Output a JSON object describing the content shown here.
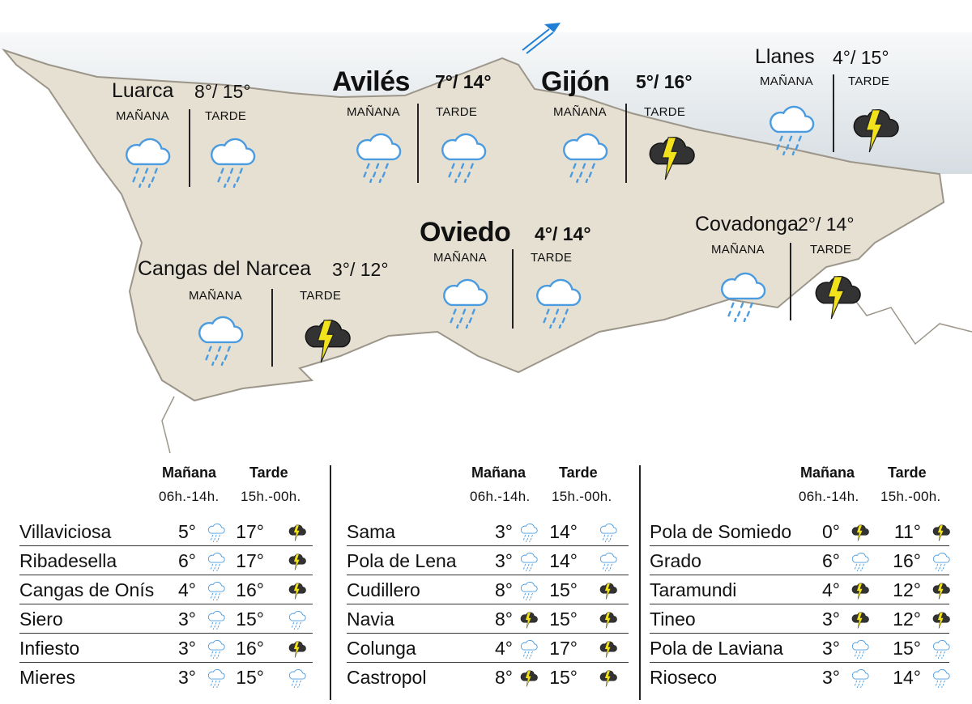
{
  "map": {
    "cities": [
      {
        "name": "Luarca",
        "temps": "8°/ 15°",
        "style": "normal",
        "morning_label": "MAÑANA",
        "afternoon_label": "TARDE",
        "morning_icon": "rain-cloud-icon",
        "afternoon_icon": "rain-cloud-icon"
      },
      {
        "name": "Avilés",
        "temps": "7°/ 14°",
        "style": "bold",
        "morning_label": "MAÑANA",
        "afternoon_label": "TARDE",
        "morning_icon": "rain-cloud-icon",
        "afternoon_icon": "rain-cloud-icon"
      },
      {
        "name": "Gijón",
        "temps": "5°/ 16°",
        "style": "bold",
        "morning_label": "MAÑANA",
        "afternoon_label": "TARDE",
        "morning_icon": "rain-cloud-icon",
        "afternoon_icon": "storm-cloud-icon"
      },
      {
        "name": "Llanes",
        "temps": "4°/ 15°",
        "style": "normal",
        "morning_label": "MAÑANA",
        "afternoon_label": "TARDE",
        "morning_icon": "rain-cloud-icon",
        "afternoon_icon": "storm-cloud-icon"
      },
      {
        "name": "Oviedo",
        "temps": "4°/ 14°",
        "style": "bold",
        "morning_label": "MAÑANA",
        "afternoon_label": "TARDE",
        "morning_icon": "rain-cloud-icon",
        "afternoon_icon": "rain-cloud-icon"
      },
      {
        "name": "Cangas del Narcea",
        "temps": "3°/ 12°",
        "style": "normal",
        "morning_label": "MAÑANA",
        "afternoon_label": "TARDE",
        "morning_icon": "rain-cloud-icon",
        "afternoon_icon": "storm-cloud-icon"
      },
      {
        "name": "Covadonga",
        "temps": "2°/ 14°",
        "style": "normal",
        "morning_label": "MAÑANA",
        "afternoon_label": "TARDE",
        "morning_icon": "rain-cloud-icon",
        "afternoon_icon": "storm-cloud-icon"
      }
    ],
    "colors": {
      "land": "#e6e0d3",
      "border": "#9c968a",
      "sea": "#dde3e7",
      "rain": "#4a9be0",
      "storm_cloud": "#333333",
      "bolt": "#f2e21b",
      "flag": "#1f7fd6"
    }
  },
  "table": {
    "headers": {
      "morning": "Mañana",
      "afternoon": "Tarde",
      "morning_hours": "06h.-14h.",
      "afternoon_hours": "15h.-00h."
    },
    "columns": [
      [
        {
          "name": "Villaviciosa",
          "morning": "5°",
          "morning_icon": "rain",
          "afternoon": "17°",
          "afternoon_icon": "storm"
        },
        {
          "name": "Ribadesella",
          "morning": "6°",
          "morning_icon": "rain",
          "afternoon": "17°",
          "afternoon_icon": "storm"
        },
        {
          "name": "Cangas de Onís",
          "morning": "4°",
          "morning_icon": "rain",
          "afternoon": "16°",
          "afternoon_icon": "storm"
        },
        {
          "name": "Siero",
          "morning": "3°",
          "morning_icon": "rain",
          "afternoon": "15°",
          "afternoon_icon": "rain"
        },
        {
          "name": "Infiesto",
          "morning": "3°",
          "morning_icon": "rain",
          "afternoon": "16°",
          "afternoon_icon": "storm"
        },
        {
          "name": "Mieres",
          "morning": "3°",
          "morning_icon": "rain",
          "afternoon": "15°",
          "afternoon_icon": "rain"
        }
      ],
      [
        {
          "name": "Sama",
          "morning": "3°",
          "morning_icon": "rain",
          "afternoon": "14°",
          "afternoon_icon": "rain"
        },
        {
          "name": "Pola de Lena",
          "morning": "3°",
          "morning_icon": "rain",
          "afternoon": "14°",
          "afternoon_icon": "rain"
        },
        {
          "name": "Cudillero",
          "morning": "8°",
          "morning_icon": "rain",
          "afternoon": "15°",
          "afternoon_icon": "storm"
        },
        {
          "name": "Navia",
          "morning": "8°",
          "morning_icon": "storm",
          "afternoon": "15°",
          "afternoon_icon": "storm"
        },
        {
          "name": "Colunga",
          "morning": "4°",
          "morning_icon": "rain",
          "afternoon": "17°",
          "afternoon_icon": "storm"
        },
        {
          "name": "Castropol",
          "morning": "8°",
          "morning_icon": "storm",
          "afternoon": "15°",
          "afternoon_icon": "storm"
        }
      ],
      [
        {
          "name": "Pola de Somiedo",
          "morning": "0°",
          "morning_icon": "storm",
          "afternoon": "11°",
          "afternoon_icon": "storm"
        },
        {
          "name": "Grado",
          "morning": "6°",
          "morning_icon": "rain",
          "afternoon": "16°",
          "afternoon_icon": "rain"
        },
        {
          "name": "Taramundi",
          "morning": "4°",
          "morning_icon": "storm",
          "afternoon": "12°",
          "afternoon_icon": "storm"
        },
        {
          "name": "Tineo",
          "morning": "3°",
          "morning_icon": "storm",
          "afternoon": "12°",
          "afternoon_icon": "storm"
        },
        {
          "name": "Pola de Laviana",
          "morning": "3°",
          "morning_icon": "rain",
          "afternoon": "15°",
          "afternoon_icon": "rain"
        },
        {
          "name": "Rioseco",
          "morning": "3°",
          "morning_icon": "rain",
          "afternoon": "14°",
          "afternoon_icon": "rain"
        }
      ]
    ]
  }
}
